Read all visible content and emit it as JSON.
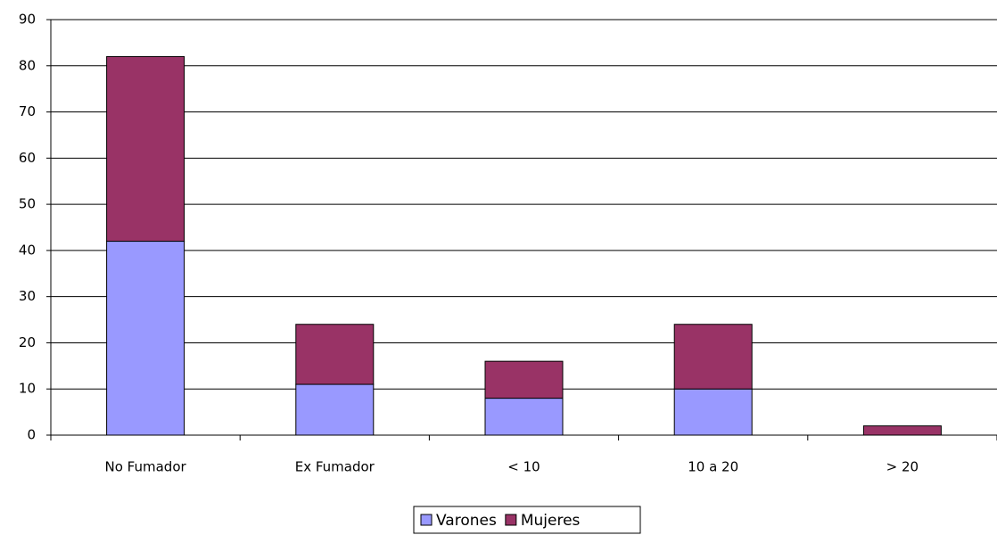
{
  "chart_data": {
    "type": "stacked_bar",
    "categories": [
      "No Fumador",
      "Ex Fumador",
      "< 10",
      "10 a 20",
      "> 20"
    ],
    "series": [
      {
        "name": "Varones",
        "color": "#9999ff",
        "values": [
          42,
          11,
          8,
          10,
          0
        ]
      },
      {
        "name": "Mujeres",
        "color": "#993366",
        "values": [
          40,
          13,
          8,
          14,
          2
        ]
      }
    ],
    "ylim": [
      0,
      90
    ],
    "yticks": [
      0,
      10,
      20,
      30,
      40,
      50,
      60,
      70,
      80,
      90
    ],
    "grid": true,
    "legend": "bottom"
  }
}
